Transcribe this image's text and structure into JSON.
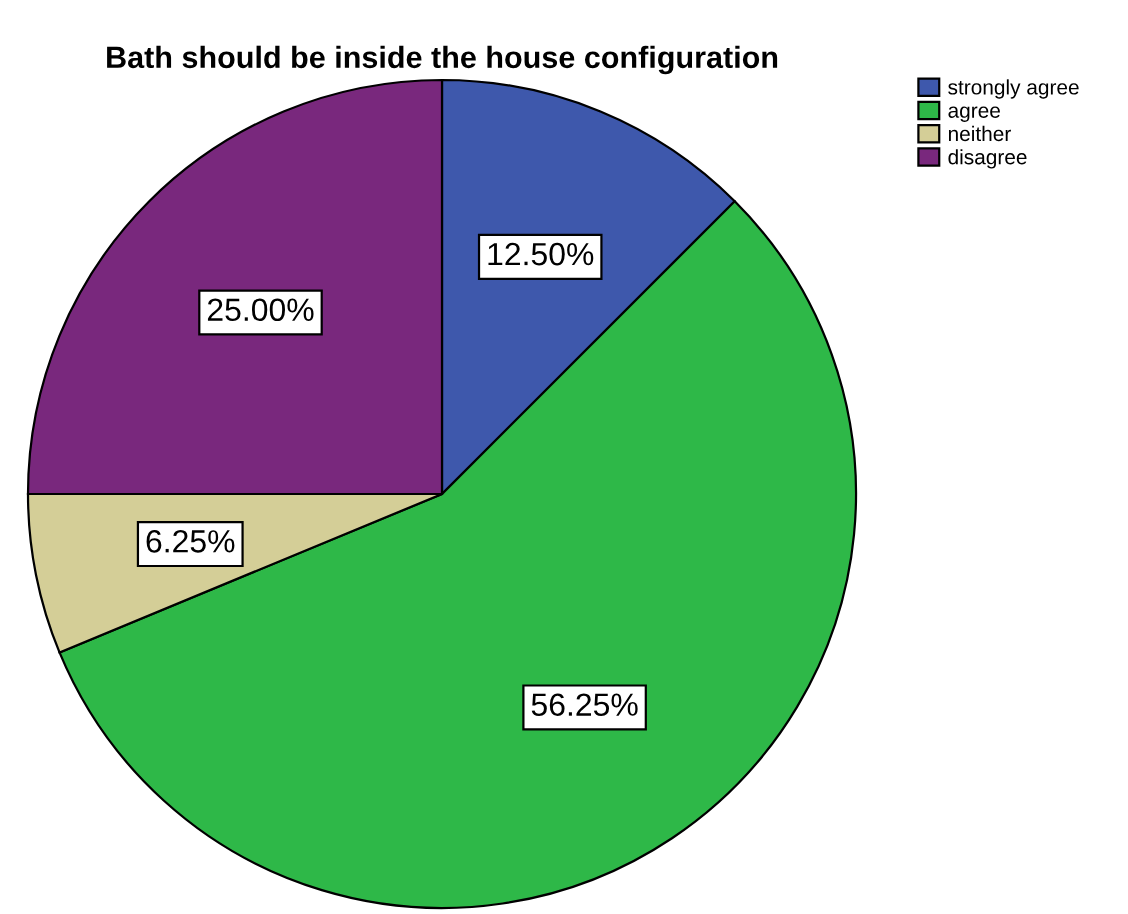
{
  "chart_data": {
    "type": "pie",
    "title": "Bath should be inside the house configuration",
    "categories": [
      "strongly agree",
      "agree",
      "neither",
      "disagree"
    ],
    "values": [
      12.5,
      56.25,
      6.25,
      25
    ],
    "colors": [
      "#3e58ac",
      "#2eb848",
      "#d4ce97",
      "#79287d"
    ],
    "value_labels": [
      "12.50%",
      "56.25%",
      "6.25%",
      "25.00%"
    ],
    "legend": "top right"
  }
}
